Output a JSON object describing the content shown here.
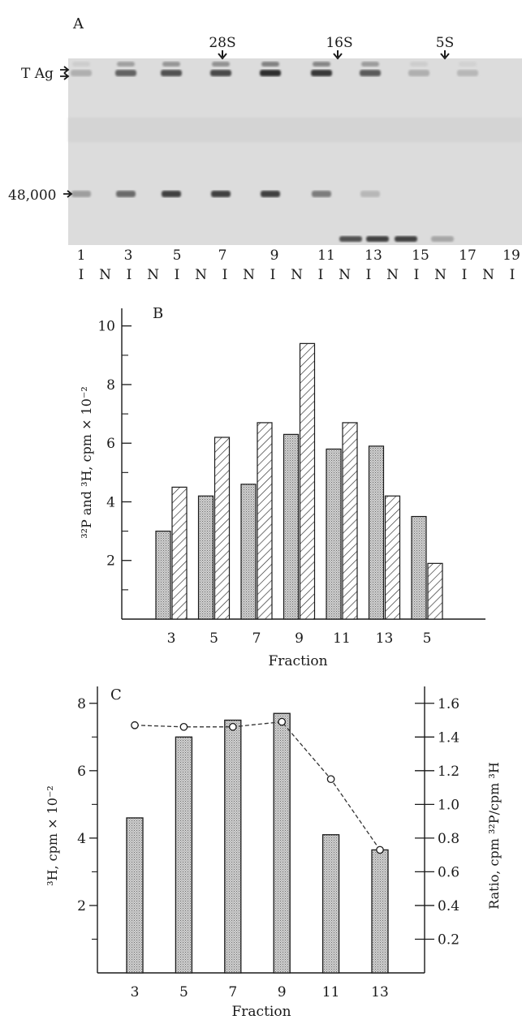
{
  "panel_a": {
    "label": "A",
    "markers_top": [
      "28S",
      "16S",
      "5S"
    ],
    "markers_left": [
      "T Ag",
      "48,000"
    ],
    "lane_numbers": [
      "1",
      "3",
      "5",
      "7",
      "9",
      "11",
      "13",
      "15",
      "17",
      "19"
    ],
    "lane_codes": [
      "I",
      "N",
      "I",
      "N",
      "I",
      "N",
      "I",
      "N",
      "I",
      "N",
      "I",
      "N",
      "I",
      "N",
      "I",
      "N",
      "I",
      "N",
      "I"
    ],
    "band_intensity_tag": [
      0.15,
      0.6,
      0.7,
      0.75,
      0.9,
      0.85,
      0.65,
      0.15,
      0.1
    ],
    "band_intensity_48k": [
      0.25,
      0.55,
      0.8,
      0.8,
      0.8,
      0.45,
      0.1,
      0.0,
      0.0
    ],
    "lowband_intensity": [
      0.0,
      0.0,
      0.0,
      0.0,
      0.0,
      0.0,
      0.7,
      0.8,
      0.8,
      0.2
    ]
  },
  "chart_data": [
    {
      "type": "bar",
      "panel_label": "B",
      "categories": [
        "3",
        "5",
        "7",
        "9",
        "11",
        "13",
        "5"
      ],
      "series": [
        {
          "pattern": "stippled",
          "values": [
            3.0,
            4.2,
            4.6,
            6.3,
            5.8,
            5.9,
            3.5
          ]
        },
        {
          "pattern": "hatched",
          "values": [
            4.5,
            6.2,
            6.7,
            9.4,
            6.7,
            4.2,
            1.9
          ]
        }
      ],
      "xlabel": "Fraction",
      "ylabel": "³²P and ³H, cpm × 10⁻²",
      "ylim": [
        0,
        10.6
      ],
      "yticks": [
        2,
        4,
        6,
        8,
        10
      ],
      "grid": false
    },
    {
      "type": "bar",
      "panel_label": "C",
      "categories": [
        "3",
        "5",
        "7",
        "9",
        "11",
        "13"
      ],
      "series": [
        {
          "pattern": "stippled",
          "axis": "left",
          "values": [
            4.6,
            7.0,
            7.5,
            7.7,
            4.1,
            3.65
          ]
        },
        {
          "pattern": "dashed-line-open-circles",
          "axis": "right",
          "values": [
            1.47,
            1.46,
            1.46,
            1.49,
            1.15,
            0.73
          ]
        }
      ],
      "xlabel": "Fraction",
      "ylabel": "³H, cpm × 10⁻²",
      "y2label": "Ratio, cpm ³²P/cpm ³H",
      "ylim": [
        0,
        8.5
      ],
      "yticks": [
        2,
        4,
        6,
        8
      ],
      "y2lim": [
        0,
        1.7
      ],
      "y2ticks": [
        "0.2",
        "0.4",
        "0.6",
        "0.8",
        "1.0",
        "1.2",
        "1.4",
        "1.6"
      ],
      "grid": false
    }
  ]
}
